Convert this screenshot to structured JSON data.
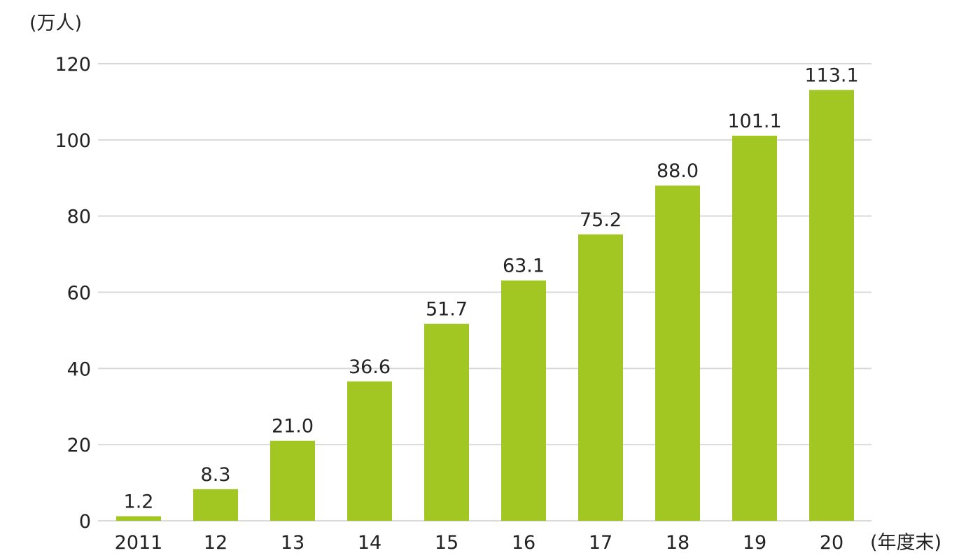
{
  "chart_data": {
    "type": "bar",
    "categories": [
      "2011",
      "12",
      "13",
      "14",
      "15",
      "16",
      "17",
      "18",
      "19",
      "20"
    ],
    "values": [
      1.2,
      8.3,
      21.0,
      36.6,
      51.7,
      63.1,
      75.2,
      88.0,
      101.1,
      113.1
    ],
    "value_labels": [
      "1.2",
      "8.3",
      "21.0",
      "36.6",
      "51.7",
      "63.1",
      "75.2",
      "88.0",
      "101.1",
      "113.1"
    ],
    "y_ticks": [
      0,
      20,
      40,
      60,
      80,
      100,
      120
    ],
    "ylim": [
      0,
      120
    ],
    "ylabel": "(万人)",
    "xlabel": "(年度末)",
    "title": "",
    "grid": true,
    "bar_color": "#a2c722",
    "grid_color": "#d9d9d9",
    "text_color": "#222222"
  }
}
